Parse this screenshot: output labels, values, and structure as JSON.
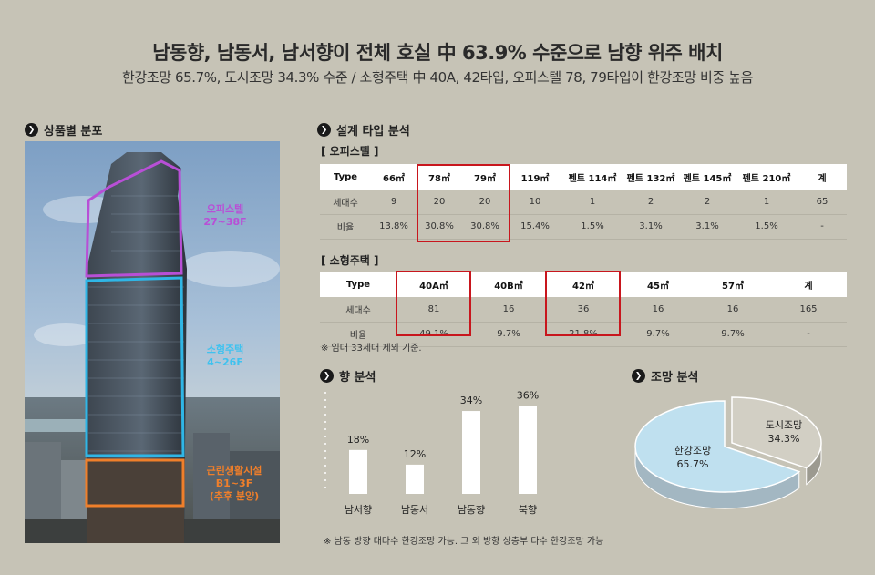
{
  "header": {
    "title": "남동향, 남동서, 남서향이 전체 호실 中 63.9% 수준으로 남향 위주 배치",
    "subtitle": "한강조망 65.7%, 도시조망 34.3% 수준 / 소형주택 中 40A, 42타입, 오피스텔 78, 79타입이 한강조망 비중 높음"
  },
  "sections": {
    "product": "상품별 분포",
    "design": "설계 타입 분석",
    "direction": "향 분석",
    "view": "조망 분석"
  },
  "building": {
    "zones": [
      {
        "name": "오피스텔",
        "floors": "27~38F",
        "color": "#b84fd6"
      },
      {
        "name": "소형주택",
        "floors": "4~26F",
        "color": "#2fb6e6"
      },
      {
        "name": "근린생활시설",
        "floors": "B1~3F",
        "extra": "(추후 분양)",
        "color": "#f07f2a"
      }
    ]
  },
  "officetel": {
    "label": "[ 오피스텔 ]",
    "header": [
      "Type",
      "66㎡",
      "78㎡",
      "79㎡",
      "119㎡",
      "펜트 114㎡",
      "펜트 132㎡",
      "펜트 145㎡",
      "펜트 210㎡",
      "계"
    ],
    "rows": [
      [
        "세대수",
        "9",
        "20",
        "20",
        "10",
        "1",
        "2",
        "2",
        "1",
        "65"
      ],
      [
        "비율",
        "13.8%",
        "30.8%",
        "30.8%",
        "15.4%",
        "1.5%",
        "3.1%",
        "3.1%",
        "1.5%",
        "-"
      ]
    ]
  },
  "small_housing": {
    "label": "[ 소형주택 ]",
    "header": [
      "Type",
      "40A㎡",
      "40B㎡",
      "42㎡",
      "45㎡",
      "57㎡",
      "계"
    ],
    "rows": [
      [
        "세대수",
        "81",
        "16",
        "36",
        "16",
        "16",
        "165"
      ],
      [
        "비율",
        "49.1%",
        "9.7%",
        "21.8%",
        "9.7%",
        "9.7%",
        "-"
      ]
    ],
    "note": "※ 임대 33세대 제외 기준."
  },
  "chart_data": [
    {
      "type": "bar",
      "categories": [
        "남서향",
        "남동서",
        "남동향",
        "북향"
      ],
      "values": [
        18,
        12,
        34,
        36
      ],
      "value_labels": [
        "18%",
        "12%",
        "34%",
        "36%"
      ],
      "ylim": [
        0,
        40
      ],
      "bar_color": "#ffffff",
      "grid": false,
      "note": "※ 남동 방향 대다수 한강조망 가능. 그 외 방향 상층부 다수 한강조망 가능"
    },
    {
      "type": "pie",
      "categories": [
        "한강조망",
        "도시조망"
      ],
      "values": [
        65.7,
        34.3
      ],
      "value_labels": [
        "65.7%",
        "34.3%"
      ],
      "colors": [
        "#bfe0ef",
        "#d2cfc4"
      ]
    }
  ]
}
